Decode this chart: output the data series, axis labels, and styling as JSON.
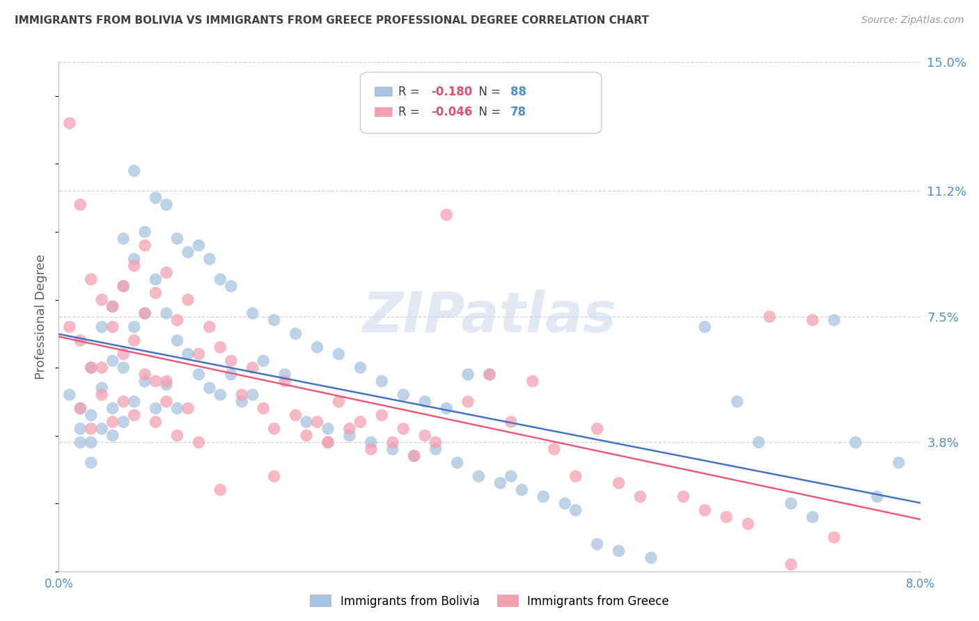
{
  "title": "IMMIGRANTS FROM BOLIVIA VS IMMIGRANTS FROM GREECE PROFESSIONAL DEGREE CORRELATION CHART",
  "source": "Source: ZipAtlas.com",
  "ylabel": "Professional Degree",
  "watermark": "ZIPatlas",
  "xmin": 0.0,
  "xmax": 0.08,
  "ymin": 0.0,
  "ymax": 0.15,
  "yticks": [
    0.0,
    0.038,
    0.075,
    0.112,
    0.15
  ],
  "ytick_labels": [
    "",
    "3.8%",
    "7.5%",
    "11.2%",
    "15.0%"
  ],
  "xticks": [
    0.0,
    0.02,
    0.04,
    0.06,
    0.08
  ],
  "xtick_labels": [
    "0.0%",
    "",
    "",
    "",
    "8.0%"
  ],
  "bolivia_R": -0.18,
  "bolivia_N": 88,
  "greece_R": -0.046,
  "greece_N": 78,
  "bolivia_color": "#a8c4e0",
  "greece_color": "#f4a0b0",
  "bolivia_line_color": "#4472c4",
  "greece_line_color": "#e85c7a",
  "background_color": "#ffffff",
  "grid_color": "#c8d4e8",
  "title_color": "#404040",
  "axis_label_color": "#606060",
  "tick_label_color": "#5090d0",
  "legend_r_color": "#e05090",
  "legend_n_color": "#5090d0",
  "bolivia_scatter_x": [
    0.001,
    0.002,
    0.002,
    0.002,
    0.003,
    0.003,
    0.003,
    0.003,
    0.004,
    0.004,
    0.004,
    0.005,
    0.005,
    0.005,
    0.005,
    0.006,
    0.006,
    0.006,
    0.006,
    0.007,
    0.007,
    0.007,
    0.007,
    0.008,
    0.008,
    0.008,
    0.009,
    0.009,
    0.009,
    0.01,
    0.01,
    0.01,
    0.011,
    0.011,
    0.011,
    0.012,
    0.012,
    0.013,
    0.013,
    0.014,
    0.014,
    0.015,
    0.015,
    0.016,
    0.016,
    0.017,
    0.018,
    0.018,
    0.019,
    0.02,
    0.021,
    0.022,
    0.023,
    0.024,
    0.025,
    0.026,
    0.027,
    0.028,
    0.029,
    0.03,
    0.031,
    0.032,
    0.033,
    0.034,
    0.035,
    0.036,
    0.037,
    0.038,
    0.039,
    0.04,
    0.041,
    0.042,
    0.043,
    0.045,
    0.047,
    0.048,
    0.05,
    0.052,
    0.055,
    0.06,
    0.063,
    0.065,
    0.068,
    0.07,
    0.072,
    0.074,
    0.076,
    0.078
  ],
  "bolivia_scatter_y": [
    0.052,
    0.048,
    0.042,
    0.038,
    0.06,
    0.046,
    0.038,
    0.032,
    0.072,
    0.054,
    0.042,
    0.078,
    0.062,
    0.048,
    0.04,
    0.098,
    0.084,
    0.06,
    0.044,
    0.118,
    0.092,
    0.072,
    0.05,
    0.1,
    0.076,
    0.056,
    0.11,
    0.086,
    0.048,
    0.108,
    0.076,
    0.055,
    0.098,
    0.068,
    0.048,
    0.094,
    0.064,
    0.096,
    0.058,
    0.092,
    0.054,
    0.086,
    0.052,
    0.084,
    0.058,
    0.05,
    0.076,
    0.052,
    0.062,
    0.074,
    0.058,
    0.07,
    0.044,
    0.066,
    0.042,
    0.064,
    0.04,
    0.06,
    0.038,
    0.056,
    0.036,
    0.052,
    0.034,
    0.05,
    0.036,
    0.048,
    0.032,
    0.058,
    0.028,
    0.058,
    0.026,
    0.028,
    0.024,
    0.022,
    0.02,
    0.018,
    0.008,
    0.006,
    0.004,
    0.072,
    0.05,
    0.038,
    0.02,
    0.016,
    0.074,
    0.038,
    0.022,
    0.032
  ],
  "greece_scatter_x": [
    0.001,
    0.002,
    0.002,
    0.003,
    0.003,
    0.004,
    0.004,
    0.005,
    0.005,
    0.006,
    0.006,
    0.007,
    0.007,
    0.008,
    0.008,
    0.009,
    0.009,
    0.01,
    0.01,
    0.011,
    0.011,
    0.012,
    0.013,
    0.013,
    0.014,
    0.015,
    0.016,
    0.017,
    0.018,
    0.019,
    0.02,
    0.021,
    0.022,
    0.023,
    0.024,
    0.025,
    0.026,
    0.027,
    0.028,
    0.029,
    0.03,
    0.031,
    0.032,
    0.033,
    0.034,
    0.035,
    0.036,
    0.038,
    0.04,
    0.042,
    0.044,
    0.046,
    0.048,
    0.05,
    0.052,
    0.054,
    0.058,
    0.06,
    0.062,
    0.064,
    0.066,
    0.068,
    0.07,
    0.072,
    0.001,
    0.002,
    0.003,
    0.004,
    0.005,
    0.006,
    0.007,
    0.008,
    0.009,
    0.01,
    0.012,
    0.015,
    0.02,
    0.025
  ],
  "greece_scatter_y": [
    0.072,
    0.068,
    0.048,
    0.086,
    0.042,
    0.08,
    0.052,
    0.078,
    0.044,
    0.084,
    0.05,
    0.09,
    0.046,
    0.096,
    0.058,
    0.082,
    0.044,
    0.088,
    0.05,
    0.074,
    0.04,
    0.08,
    0.064,
    0.038,
    0.072,
    0.066,
    0.062,
    0.052,
    0.06,
    0.048,
    0.042,
    0.056,
    0.046,
    0.04,
    0.044,
    0.038,
    0.05,
    0.042,
    0.044,
    0.036,
    0.046,
    0.038,
    0.042,
    0.034,
    0.04,
    0.038,
    0.105,
    0.05,
    0.058,
    0.044,
    0.056,
    0.036,
    0.028,
    0.042,
    0.026,
    0.022,
    0.022,
    0.018,
    0.016,
    0.014,
    0.075,
    0.002,
    0.074,
    0.01,
    0.132,
    0.108,
    0.06,
    0.06,
    0.072,
    0.064,
    0.068,
    0.076,
    0.056,
    0.056,
    0.048,
    0.024,
    0.028,
    0.038
  ]
}
